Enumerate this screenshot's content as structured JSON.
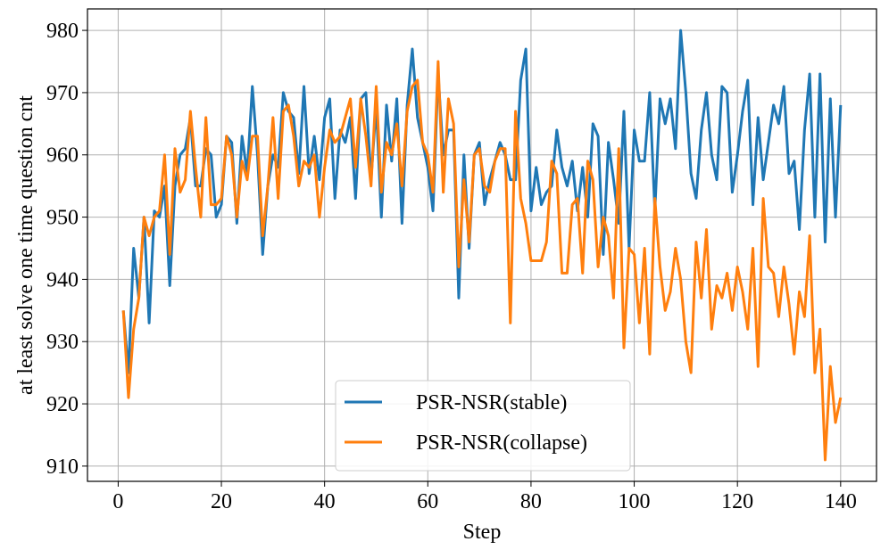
{
  "chart_data": {
    "type": "line",
    "xlabel": "Step",
    "ylabel": "at least solve one time question cnt",
    "x": [
      1,
      2,
      3,
      4,
      5,
      6,
      7,
      8,
      9,
      10,
      11,
      12,
      13,
      14,
      15,
      16,
      17,
      18,
      19,
      20,
      21,
      22,
      23,
      24,
      25,
      26,
      27,
      28,
      29,
      30,
      31,
      32,
      33,
      34,
      35,
      36,
      37,
      38,
      39,
      40,
      41,
      42,
      43,
      44,
      45,
      46,
      47,
      48,
      49,
      50,
      51,
      52,
      53,
      54,
      55,
      56,
      57,
      58,
      59,
      60,
      61,
      62,
      63,
      64,
      65,
      66,
      67,
      68,
      69,
      70,
      71,
      72,
      73,
      74,
      75,
      76,
      77,
      78,
      79,
      80,
      81,
      82,
      83,
      84,
      85,
      86,
      87,
      88,
      89,
      90,
      91,
      92,
      93,
      94,
      95,
      96,
      97,
      98,
      99,
      100,
      101,
      102,
      103,
      104,
      105,
      106,
      107,
      108,
      109,
      110,
      111,
      112,
      113,
      114,
      115,
      116,
      117,
      118,
      119,
      120,
      121,
      122,
      123,
      124,
      125,
      126,
      127,
      128,
      129,
      130,
      131,
      132,
      133,
      134,
      135,
      136,
      137,
      138,
      139,
      140
    ],
    "series": [
      {
        "name": "PSR-NSR(stable)",
        "color": "#1f77b4",
        "values": [
          935,
          925,
          945,
          937,
          950,
          933,
          951,
          950,
          955,
          939,
          955,
          960,
          961,
          966,
          955,
          955,
          961,
          960,
          950,
          952,
          963,
          962,
          949,
          963,
          957,
          971,
          960,
          944,
          955,
          960,
          958,
          970,
          967,
          966,
          957,
          971,
          957,
          963,
          956,
          966,
          969,
          953,
          964,
          962,
          966,
          953,
          969,
          970,
          956,
          968,
          950,
          968,
          959,
          969,
          949,
          968,
          977,
          966,
          962,
          958,
          951,
          973,
          960,
          964,
          964,
          937,
          960,
          945,
          960,
          962,
          952,
          956,
          959,
          962,
          960,
          956,
          956,
          972,
          977,
          951,
          958,
          952,
          954,
          955,
          964,
          958,
          955,
          959,
          951,
          958,
          950,
          965,
          963,
          944,
          962,
          956,
          949,
          967,
          945,
          964,
          959,
          959,
          970,
          951,
          969,
          965,
          969,
          961,
          980,
          970,
          957,
          953,
          964,
          970,
          960,
          956,
          971,
          970,
          954,
          960,
          967,
          972,
          952,
          966,
          956,
          962,
          968,
          965,
          971,
          957,
          959,
          948,
          964,
          973,
          950,
          973,
          946,
          969,
          950,
          968
        ]
      },
      {
        "name": "PSR-NSR(collapse)",
        "color": "#ff7f0e",
        "values": [
          935,
          921,
          932,
          937,
          950,
          947,
          950,
          951,
          960,
          944,
          961,
          954,
          956,
          967,
          958,
          950,
          966,
          952,
          952,
          953,
          963,
          960,
          950,
          959,
          956,
          963,
          963,
          947,
          955,
          966,
          953,
          967,
          968,
          963,
          955,
          959,
          958,
          960,
          950,
          958,
          964,
          962,
          963,
          966,
          969,
          958,
          969,
          963,
          955,
          971,
          954,
          962,
          960,
          965,
          955,
          967,
          971,
          972,
          962,
          960,
          954,
          975,
          954,
          969,
          965,
          942,
          956,
          946,
          960,
          961,
          955,
          954,
          959,
          961,
          961,
          933,
          967,
          953,
          949,
          943,
          943,
          943,
          946,
          959,
          957,
          941,
          941,
          952,
          953,
          941,
          959,
          956,
          942,
          950,
          947,
          937,
          961,
          929,
          945,
          944,
          933,
          945,
          928,
          953,
          942,
          935,
          938,
          945,
          940,
          930,
          925,
          946,
          937,
          948,
          932,
          939,
          937,
          941,
          935,
          942,
          938,
          932,
          945,
          926,
          953,
          942,
          941,
          934,
          942,
          936,
          928,
          938,
          934,
          947,
          925,
          932,
          911,
          926,
          917,
          921
        ]
      }
    ],
    "xlim": [
      -5.95,
      146.95
    ],
    "xticks": [
      0,
      20,
      40,
      60,
      80,
      100,
      120,
      140
    ],
    "ylim": [
      907.55,
      983.45
    ],
    "yticks": [
      910,
      920,
      930,
      940,
      950,
      960,
      970,
      980
    ],
    "grid": true,
    "legend": "lower center"
  }
}
